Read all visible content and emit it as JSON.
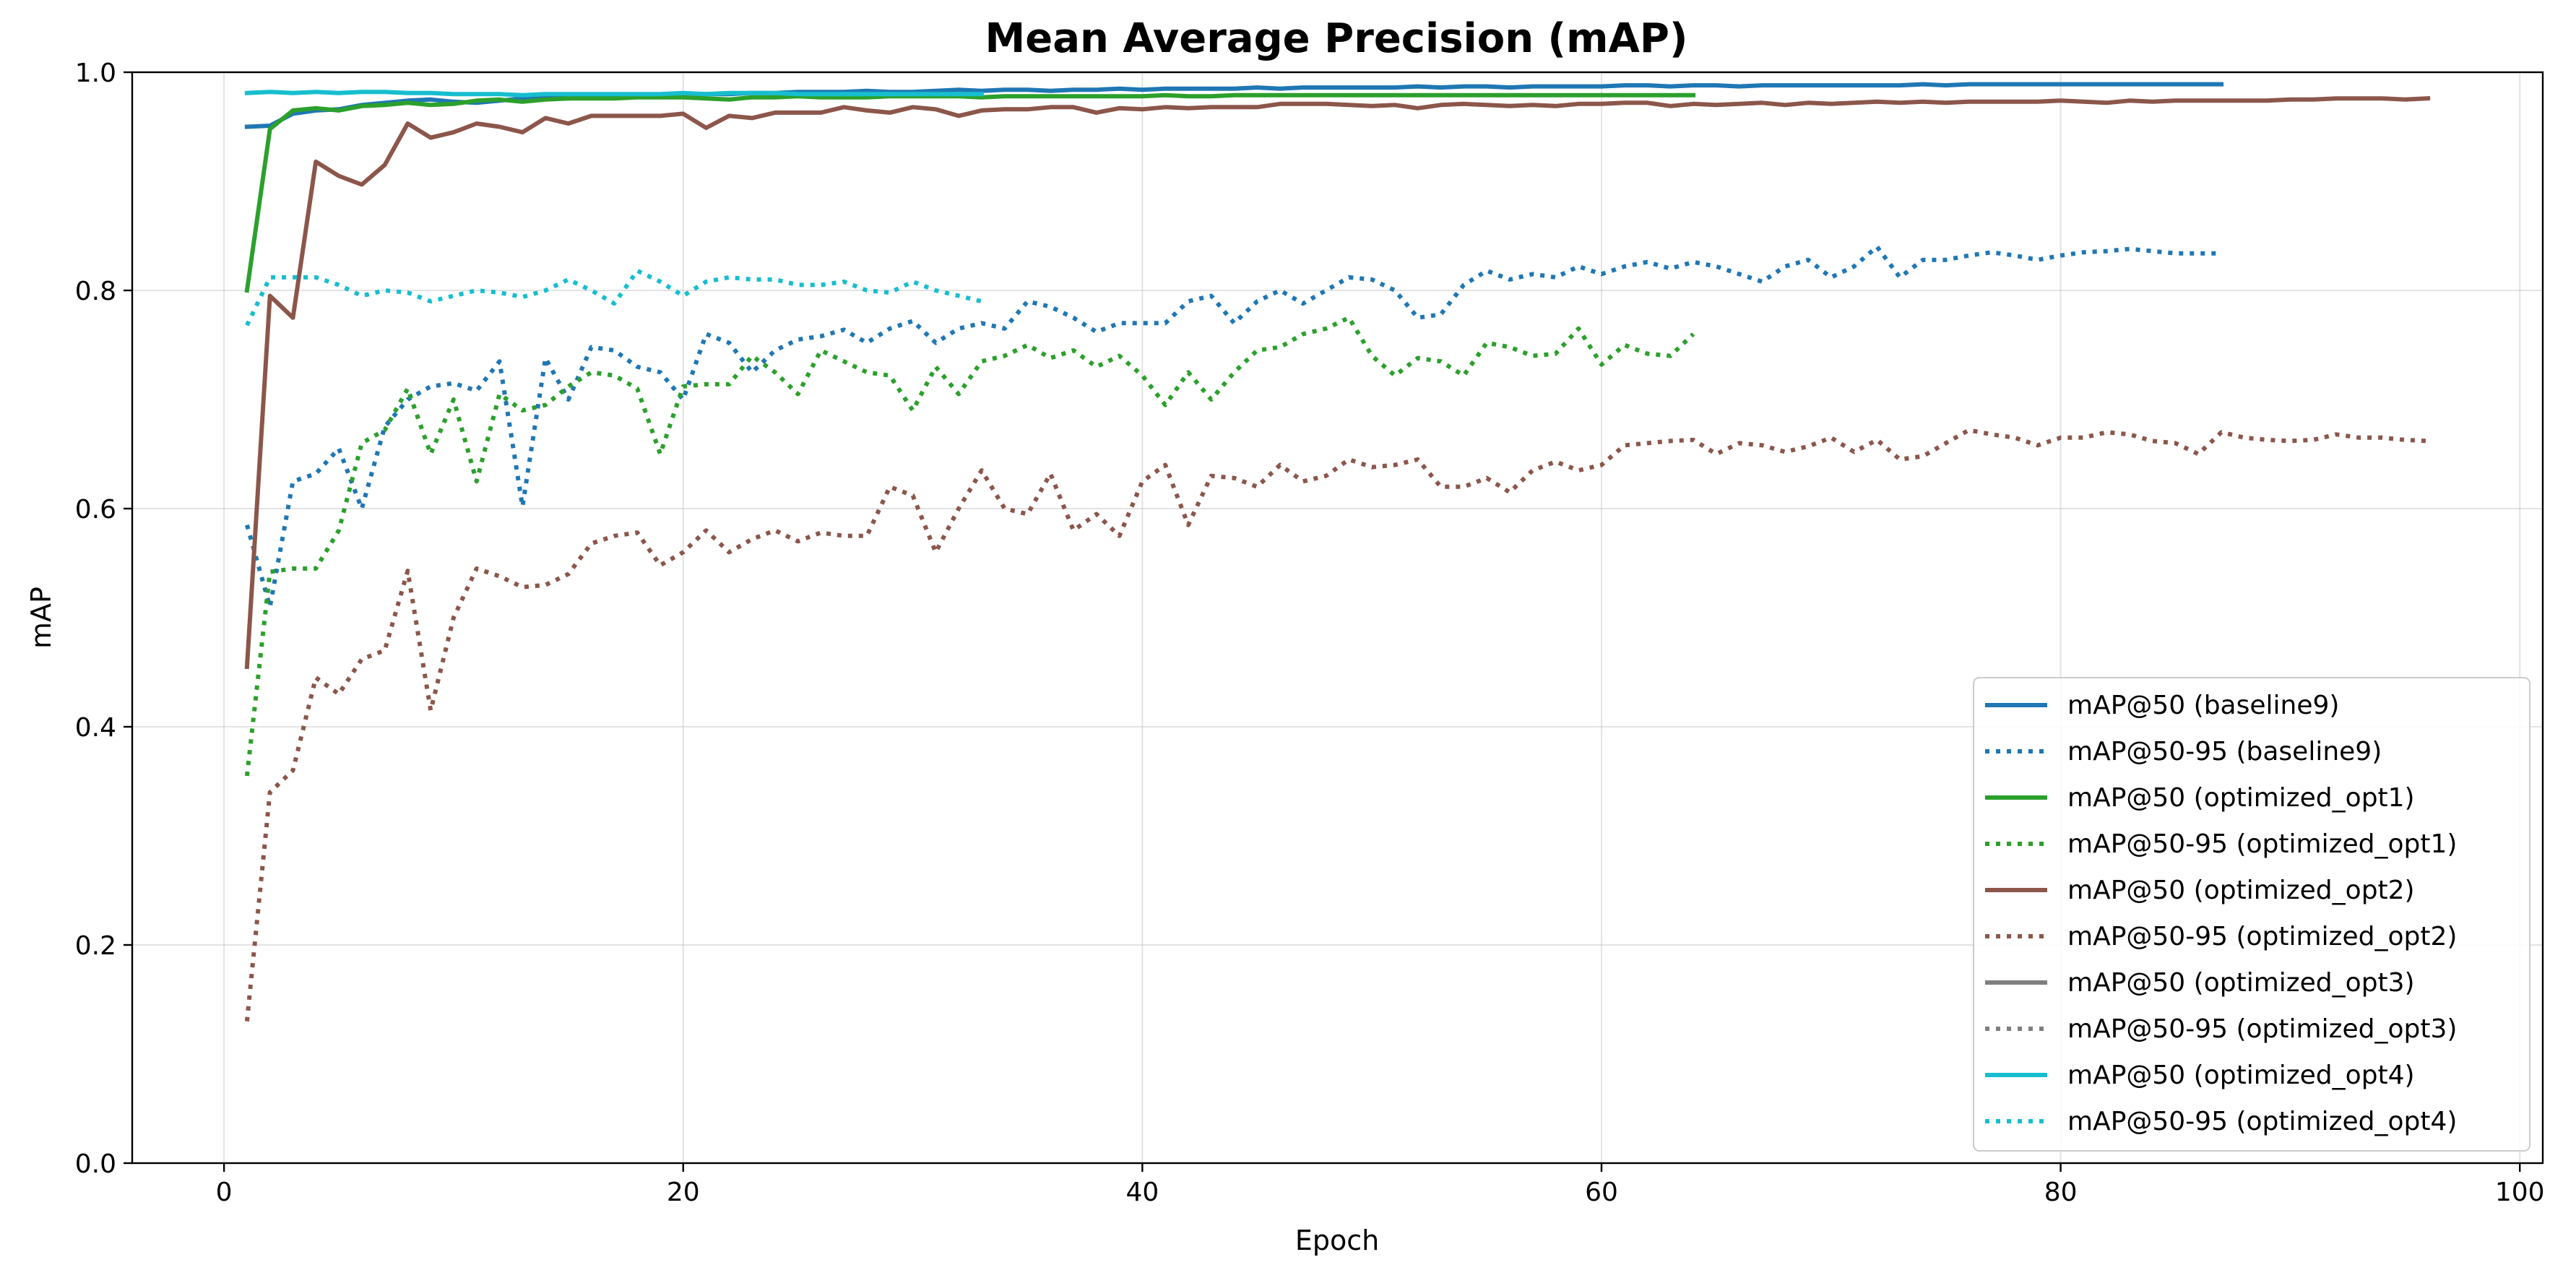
{
  "chart_data": {
    "type": "line",
    "title": "Mean Average Precision (mAP)",
    "xlabel": "Epoch",
    "ylabel": "mAP",
    "xlim": [
      -4,
      101
    ],
    "ylim": [
      0,
      1
    ],
    "xticks": [
      0,
      20,
      40,
      60,
      80,
      100
    ],
    "yticks": [
      0.0,
      0.2,
      0.4,
      0.6,
      0.8,
      1.0
    ],
    "xtick_labels": [
      "0",
      "20",
      "40",
      "60",
      "80",
      "100"
    ],
    "ytick_labels": [
      "0.0",
      "0.2",
      "0.4",
      "0.6",
      "0.8",
      "1.0"
    ],
    "grid": true,
    "legend_position": "lower-right",
    "series": [
      {
        "name": "mAP@50 (baseline9)",
        "color": "#1f77b4",
        "style": "solid",
        "x": [
          1,
          2,
          3,
          4,
          5,
          6,
          7,
          8,
          9,
          10,
          11,
          12,
          13,
          14,
          15,
          16,
          17,
          18,
          19,
          20,
          21,
          22,
          23,
          24,
          25,
          26,
          27,
          28,
          29,
          30,
          31,
          32,
          33,
          34,
          35,
          36,
          37,
          38,
          39,
          40,
          41,
          42,
          43,
          44,
          45,
          46,
          47,
          48,
          49,
          50,
          51,
          52,
          53,
          54,
          55,
          56,
          57,
          58,
          59,
          60,
          61,
          62,
          63,
          64,
          65,
          66,
          67,
          68,
          69,
          70,
          71,
          72,
          73,
          74,
          75,
          76,
          77,
          78,
          79,
          80,
          81,
          82,
          83,
          84,
          85,
          86,
          87
        ],
        "y": [
          0.95,
          0.951,
          0.962,
          0.965,
          0.966,
          0.97,
          0.972,
          0.974,
          0.975,
          0.973,
          0.972,
          0.974,
          0.976,
          0.977,
          0.976,
          0.977,
          0.978,
          0.978,
          0.979,
          0.979,
          0.98,
          0.98,
          0.981,
          0.981,
          0.982,
          0.982,
          0.982,
          0.983,
          0.982,
          0.982,
          0.983,
          0.984,
          0.983,
          0.984,
          0.984,
          0.983,
          0.984,
          0.984,
          0.985,
          0.984,
          0.985,
          0.985,
          0.985,
          0.985,
          0.986,
          0.985,
          0.986,
          0.986,
          0.986,
          0.986,
          0.986,
          0.987,
          0.986,
          0.987,
          0.987,
          0.986,
          0.987,
          0.987,
          0.987,
          0.987,
          0.988,
          0.988,
          0.987,
          0.988,
          0.988,
          0.987,
          0.988,
          0.988,
          0.988,
          0.988,
          0.988,
          0.988,
          0.988,
          0.989,
          0.988,
          0.989,
          0.989,
          0.989,
          0.989,
          0.989,
          0.989,
          0.989,
          0.989,
          0.989,
          0.989,
          0.989,
          0.989
        ]
      },
      {
        "name": "mAP@50-95 (baseline9)",
        "color": "#1f77b4",
        "style": "dotted",
        "x": [
          1,
          2,
          3,
          4,
          5,
          6,
          7,
          8,
          9,
          10,
          11,
          12,
          13,
          14,
          15,
          16,
          17,
          18,
          19,
          20,
          21,
          22,
          23,
          24,
          25,
          26,
          27,
          28,
          29,
          30,
          31,
          32,
          33,
          34,
          35,
          36,
          37,
          38,
          39,
          40,
          41,
          42,
          43,
          44,
          45,
          46,
          47,
          48,
          49,
          50,
          51,
          52,
          53,
          54,
          55,
          56,
          57,
          58,
          59,
          60,
          61,
          62,
          63,
          64,
          65,
          66,
          67,
          68,
          69,
          70,
          71,
          72,
          73,
          74,
          75,
          76,
          77,
          78,
          79,
          80,
          81,
          82,
          83,
          84,
          85,
          86,
          87
        ],
        "y": [
          0.585,
          0.51,
          0.625,
          0.632,
          0.655,
          0.6,
          0.675,
          0.7,
          0.712,
          0.715,
          0.708,
          0.735,
          0.602,
          0.738,
          0.7,
          0.748,
          0.745,
          0.73,
          0.725,
          0.7,
          0.76,
          0.752,
          0.725,
          0.745,
          0.755,
          0.758,
          0.764,
          0.752,
          0.765,
          0.772,
          0.752,
          0.765,
          0.77,
          0.765,
          0.79,
          0.785,
          0.775,
          0.762,
          0.77,
          0.77,
          0.77,
          0.79,
          0.795,
          0.77,
          0.79,
          0.8,
          0.788,
          0.8,
          0.812,
          0.81,
          0.8,
          0.775,
          0.778,
          0.805,
          0.818,
          0.81,
          0.815,
          0.812,
          0.822,
          0.815,
          0.822,
          0.826,
          0.82,
          0.826,
          0.822,
          0.815,
          0.808,
          0.822,
          0.828,
          0.812,
          0.822,
          0.84,
          0.812,
          0.828,
          0.828,
          0.832,
          0.835,
          0.832,
          0.828,
          0.832,
          0.835,
          0.836,
          0.838,
          0.836,
          0.834,
          0.834,
          0.834
        ]
      },
      {
        "name": "mAP@50 (optimized_opt1)",
        "color": "#2ca02c",
        "style": "solid",
        "x": [
          1,
          2,
          3,
          4,
          5,
          6,
          7,
          8,
          9,
          10,
          11,
          12,
          13,
          14,
          15,
          16,
          17,
          18,
          19,
          20,
          21,
          22,
          23,
          24,
          25,
          26,
          27,
          28,
          29,
          30,
          31,
          32,
          33,
          34,
          35,
          36,
          37,
          38,
          39,
          40,
          41,
          42,
          43,
          44,
          45,
          46,
          47,
          48,
          49,
          50,
          51,
          52,
          53,
          54,
          55,
          56,
          57,
          58,
          59,
          60,
          61,
          62,
          63,
          64
        ],
        "y": [
          0.8,
          0.948,
          0.965,
          0.967,
          0.965,
          0.969,
          0.97,
          0.972,
          0.97,
          0.971,
          0.974,
          0.975,
          0.973,
          0.975,
          0.976,
          0.976,
          0.976,
          0.977,
          0.977,
          0.977,
          0.976,
          0.975,
          0.977,
          0.977,
          0.978,
          0.977,
          0.977,
          0.977,
          0.978,
          0.978,
          0.978,
          0.978,
          0.977,
          0.978,
          0.978,
          0.978,
          0.978,
          0.978,
          0.978,
          0.978,
          0.979,
          0.978,
          0.978,
          0.979,
          0.979,
          0.979,
          0.979,
          0.979,
          0.979,
          0.979,
          0.979,
          0.979,
          0.979,
          0.979,
          0.979,
          0.979,
          0.979,
          0.979,
          0.979,
          0.979,
          0.979,
          0.979,
          0.979,
          0.979
        ]
      },
      {
        "name": "mAP@50-95 (optimized_opt1)",
        "color": "#2ca02c",
        "style": "dotted",
        "x": [
          1,
          2,
          3,
          4,
          5,
          6,
          7,
          8,
          9,
          10,
          11,
          12,
          13,
          14,
          15,
          16,
          17,
          18,
          19,
          20,
          21,
          22,
          23,
          24,
          25,
          26,
          27,
          28,
          29,
          30,
          31,
          32,
          33,
          34,
          35,
          36,
          37,
          38,
          39,
          40,
          41,
          42,
          43,
          44,
          45,
          46,
          47,
          48,
          49,
          50,
          51,
          52,
          53,
          54,
          55,
          56,
          57,
          58,
          59,
          60,
          61,
          62,
          63,
          64
        ],
        "y": [
          0.355,
          0.542,
          0.545,
          0.545,
          0.58,
          0.66,
          0.672,
          0.71,
          0.65,
          0.7,
          0.625,
          0.705,
          0.69,
          0.695,
          0.712,
          0.725,
          0.722,
          0.71,
          0.65,
          0.712,
          0.714,
          0.714,
          0.74,
          0.725,
          0.705,
          0.745,
          0.735,
          0.725,
          0.722,
          0.69,
          0.73,
          0.705,
          0.735,
          0.74,
          0.75,
          0.738,
          0.745,
          0.73,
          0.74,
          0.722,
          0.695,
          0.725,
          0.7,
          0.725,
          0.745,
          0.748,
          0.76,
          0.765,
          0.775,
          0.74,
          0.722,
          0.738,
          0.735,
          0.722,
          0.752,
          0.748,
          0.74,
          0.742,
          0.765,
          0.732,
          0.75,
          0.742,
          0.74,
          0.76
        ]
      },
      {
        "name": "mAP@50 (optimized_opt2)",
        "color": "#8c564b",
        "style": "solid",
        "x": [
          1,
          2,
          3,
          4,
          5,
          6,
          7,
          8,
          9,
          10,
          11,
          12,
          13,
          14,
          15,
          16,
          17,
          18,
          19,
          20,
          21,
          22,
          23,
          24,
          25,
          26,
          27,
          28,
          29,
          30,
          31,
          32,
          33,
          34,
          35,
          36,
          37,
          38,
          39,
          40,
          41,
          42,
          43,
          44,
          45,
          46,
          47,
          48,
          49,
          50,
          51,
          52,
          53,
          54,
          55,
          56,
          57,
          58,
          59,
          60,
          61,
          62,
          63,
          64,
          65,
          66,
          67,
          68,
          69,
          70,
          71,
          72,
          73,
          74,
          75,
          76,
          77,
          78,
          79,
          80,
          81,
          82,
          83,
          84,
          85,
          86,
          87,
          88,
          89,
          90,
          91,
          92,
          93,
          94,
          95,
          96
        ],
        "y": [
          0.455,
          0.795,
          0.775,
          0.918,
          0.905,
          0.897,
          0.915,
          0.953,
          0.94,
          0.945,
          0.953,
          0.95,
          0.945,
          0.958,
          0.953,
          0.96,
          0.96,
          0.96,
          0.96,
          0.962,
          0.949,
          0.96,
          0.958,
          0.963,
          0.963,
          0.963,
          0.968,
          0.965,
          0.963,
          0.968,
          0.966,
          0.96,
          0.965,
          0.966,
          0.966,
          0.968,
          0.968,
          0.963,
          0.967,
          0.966,
          0.968,
          0.967,
          0.968,
          0.968,
          0.968,
          0.971,
          0.971,
          0.971,
          0.97,
          0.969,
          0.97,
          0.967,
          0.97,
          0.971,
          0.97,
          0.969,
          0.97,
          0.969,
          0.971,
          0.971,
          0.972,
          0.972,
          0.969,
          0.971,
          0.97,
          0.971,
          0.972,
          0.97,
          0.972,
          0.971,
          0.972,
          0.973,
          0.972,
          0.973,
          0.972,
          0.973,
          0.973,
          0.973,
          0.973,
          0.974,
          0.973,
          0.972,
          0.974,
          0.973,
          0.974,
          0.974,
          0.974,
          0.974,
          0.974,
          0.975,
          0.975,
          0.976,
          0.976,
          0.976,
          0.975,
          0.976
        ]
      },
      {
        "name": "mAP@50-95 (optimized_opt2)",
        "color": "#8c564b",
        "style": "dotted",
        "x": [
          1,
          2,
          3,
          4,
          5,
          6,
          7,
          8,
          9,
          10,
          11,
          12,
          13,
          14,
          15,
          16,
          17,
          18,
          19,
          20,
          21,
          22,
          23,
          24,
          25,
          26,
          27,
          28,
          29,
          30,
          31,
          32,
          33,
          34,
          35,
          36,
          37,
          38,
          39,
          40,
          41,
          42,
          43,
          44,
          45,
          46,
          47,
          48,
          49,
          50,
          51,
          52,
          53,
          54,
          55,
          56,
          57,
          58,
          59,
          60,
          61,
          62,
          63,
          64,
          65,
          66,
          67,
          68,
          69,
          70,
          71,
          72,
          73,
          74,
          75,
          76,
          77,
          78,
          79,
          80,
          81,
          82,
          83,
          84,
          85,
          86,
          87,
          88,
          89,
          90,
          91,
          92,
          93,
          94,
          95,
          96
        ],
        "y": [
          0.13,
          0.34,
          0.36,
          0.445,
          0.43,
          0.462,
          0.47,
          0.543,
          0.415,
          0.5,
          0.545,
          0.538,
          0.528,
          0.53,
          0.54,
          0.568,
          0.575,
          0.578,
          0.548,
          0.56,
          0.58,
          0.56,
          0.572,
          0.58,
          0.57,
          0.578,
          0.575,
          0.575,
          0.62,
          0.612,
          0.56,
          0.6,
          0.635,
          0.6,
          0.595,
          0.632,
          0.58,
          0.595,
          0.575,
          0.625,
          0.64,
          0.585,
          0.63,
          0.628,
          0.62,
          0.64,
          0.625,
          0.63,
          0.645,
          0.638,
          0.64,
          0.645,
          0.62,
          0.62,
          0.628,
          0.615,
          0.635,
          0.643,
          0.635,
          0.64,
          0.658,
          0.66,
          0.662,
          0.663,
          0.65,
          0.66,
          0.658,
          0.652,
          0.657,
          0.665,
          0.652,
          0.663,
          0.645,
          0.648,
          0.66,
          0.672,
          0.668,
          0.665,
          0.658,
          0.665,
          0.665,
          0.67,
          0.668,
          0.662,
          0.66,
          0.65,
          0.67,
          0.665,
          0.663,
          0.662,
          0.663,
          0.668,
          0.665,
          0.665,
          0.663,
          0.662
        ]
      },
      {
        "name": "mAP@50 (optimized_opt3)",
        "color": "#7f7f7f",
        "style": "solid",
        "x": [],
        "y": []
      },
      {
        "name": "mAP@50-95 (optimized_opt3)",
        "color": "#7f7f7f",
        "style": "dotted",
        "x": [],
        "y": []
      },
      {
        "name": "mAP@50 (optimized_opt4)",
        "color": "#17becf",
        "style": "solid",
        "x": [
          1,
          2,
          3,
          4,
          5,
          6,
          7,
          8,
          9,
          10,
          11,
          12,
          13,
          14,
          15,
          16,
          17,
          18,
          19,
          20,
          21,
          22,
          23,
          24,
          25,
          26,
          27,
          28,
          29,
          30,
          31,
          32,
          33
        ],
        "y": [
          0.981,
          0.982,
          0.981,
          0.982,
          0.981,
          0.982,
          0.982,
          0.981,
          0.981,
          0.98,
          0.98,
          0.98,
          0.979,
          0.98,
          0.98,
          0.98,
          0.98,
          0.98,
          0.98,
          0.981,
          0.98,
          0.981,
          0.981,
          0.981,
          0.98,
          0.98,
          0.98,
          0.98,
          0.98,
          0.98,
          0.98,
          0.98,
          0.98
        ]
      },
      {
        "name": "mAP@50-95 (optimized_opt4)",
        "color": "#17becf",
        "style": "dotted",
        "x": [
          1,
          2,
          3,
          4,
          5,
          6,
          7,
          8,
          9,
          10,
          11,
          12,
          13,
          14,
          15,
          16,
          17,
          18,
          19,
          20,
          21,
          22,
          23,
          24,
          25,
          26,
          27,
          28,
          29,
          30,
          31,
          32,
          33
        ],
        "y": [
          0.768,
          0.812,
          0.812,
          0.812,
          0.805,
          0.795,
          0.8,
          0.798,
          0.79,
          0.795,
          0.8,
          0.798,
          0.794,
          0.8,
          0.81,
          0.8,
          0.788,
          0.818,
          0.808,
          0.795,
          0.808,
          0.812,
          0.81,
          0.81,
          0.805,
          0.805,
          0.808,
          0.8,
          0.798,
          0.808,
          0.8,
          0.795,
          0.79
        ]
      }
    ]
  }
}
